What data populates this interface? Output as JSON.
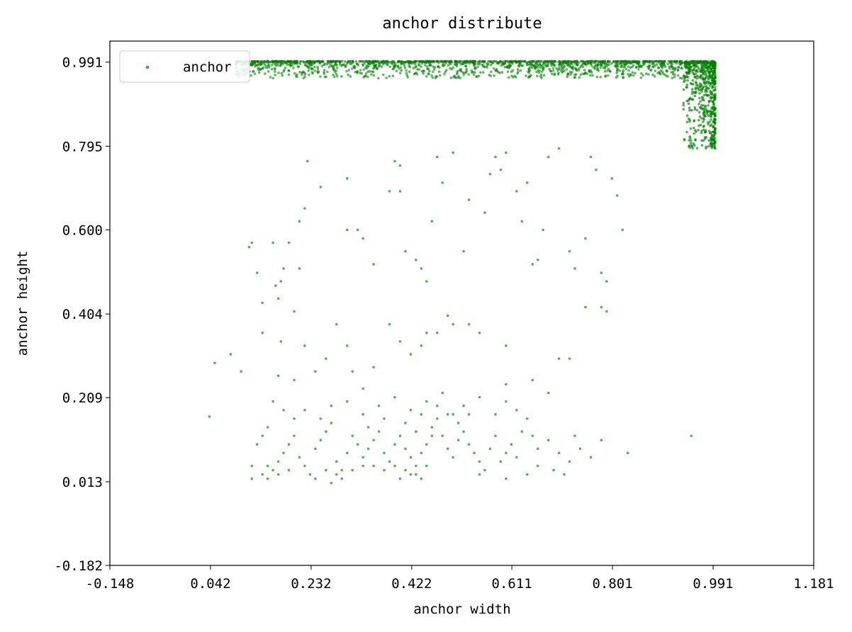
{
  "chart_data": {
    "type": "scatter",
    "title": "anchor distribute",
    "xlabel": "anchor width",
    "ylabel": "anchor height",
    "xlim": [
      -0.148,
      1.181
    ],
    "ylim": [
      -0.182,
      1.04
    ],
    "xticks": [
      "-0.148",
      "0.042",
      "0.232",
      "0.422",
      "0.611",
      "0.801",
      "0.991",
      "1.181"
    ],
    "yticks": [
      "-0.182",
      "0.013",
      "0.209",
      "0.404",
      "0.600",
      "0.795",
      "0.991"
    ],
    "legend": {
      "placement": "upper-left",
      "entries": [
        "anchor"
      ]
    },
    "grid": false,
    "colors": {
      "series": "#008000"
    },
    "series": [
      {
        "name": "anchor",
        "points": [
          [
            0.04,
            0.165
          ],
          [
            0.05,
            0.29
          ],
          [
            0.08,
            0.31
          ],
          [
            0.1,
            0.27
          ],
          [
            0.115,
            0.56
          ],
          [
            0.12,
            0.57
          ],
          [
            0.13,
            0.5
          ],
          [
            0.14,
            0.43
          ],
          [
            0.14,
            0.36
          ],
          [
            0.16,
            0.57
          ],
          [
            0.165,
            0.47
          ],
          [
            0.17,
            0.44
          ],
          [
            0.175,
            0.48
          ],
          [
            0.18,
            0.51
          ],
          [
            0.19,
            0.57
          ],
          [
            0.21,
            0.62
          ],
          [
            0.22,
            0.65
          ],
          [
            0.225,
            0.76
          ],
          [
            0.21,
            0.51
          ],
          [
            0.2,
            0.41
          ],
          [
            0.175,
            0.34
          ],
          [
            0.17,
            0.26
          ],
          [
            0.25,
            0.7
          ],
          [
            0.3,
            0.72
          ],
          [
            0.3,
            0.6
          ],
          [
            0.32,
            0.6
          ],
          [
            0.33,
            0.58
          ],
          [
            0.35,
            0.52
          ],
          [
            0.38,
            0.69
          ],
          [
            0.39,
            0.76
          ],
          [
            0.4,
            0.75
          ],
          [
            0.4,
            0.69
          ],
          [
            0.41,
            0.55
          ],
          [
            0.43,
            0.53
          ],
          [
            0.44,
            0.51
          ],
          [
            0.45,
            0.48
          ],
          [
            0.46,
            0.62
          ],
          [
            0.47,
            0.77
          ],
          [
            0.48,
            0.71
          ],
          [
            0.5,
            0.78
          ],
          [
            0.52,
            0.55
          ],
          [
            0.53,
            0.67
          ],
          [
            0.56,
            0.64
          ],
          [
            0.57,
            0.73
          ],
          [
            0.58,
            0.77
          ],
          [
            0.59,
            0.74
          ],
          [
            0.6,
            0.78
          ],
          [
            0.62,
            0.69
          ],
          [
            0.63,
            0.62
          ],
          [
            0.64,
            0.71
          ],
          [
            0.65,
            0.52
          ],
          [
            0.66,
            0.53
          ],
          [
            0.67,
            0.6
          ],
          [
            0.68,
            0.77
          ],
          [
            0.7,
            0.79
          ],
          [
            0.72,
            0.55
          ],
          [
            0.73,
            0.51
          ],
          [
            0.75,
            0.58
          ],
          [
            0.76,
            0.77
          ],
          [
            0.77,
            0.74
          ],
          [
            0.78,
            0.5
          ],
          [
            0.79,
            0.48
          ],
          [
            0.8,
            0.72
          ],
          [
            0.81,
            0.68
          ],
          [
            0.82,
            0.6
          ],
          [
            0.79,
            0.41
          ],
          [
            0.78,
            0.42
          ],
          [
            0.75,
            0.42
          ],
          [
            0.7,
            0.3
          ],
          [
            0.72,
            0.3
          ],
          [
            0.68,
            0.22
          ],
          [
            0.65,
            0.25
          ],
          [
            0.6,
            0.33
          ],
          [
            0.6,
            0.24
          ],
          [
            0.55,
            0.36
          ],
          [
            0.53,
            0.38
          ],
          [
            0.5,
            0.38
          ],
          [
            0.49,
            0.4
          ],
          [
            0.47,
            0.36
          ],
          [
            0.45,
            0.36
          ],
          [
            0.44,
            0.33
          ],
          [
            0.42,
            0.31
          ],
          [
            0.4,
            0.34
          ],
          [
            0.38,
            0.38
          ],
          [
            0.35,
            0.28
          ],
          [
            0.33,
            0.23
          ],
          [
            0.31,
            0.27
          ],
          [
            0.3,
            0.33
          ],
          [
            0.28,
            0.38
          ],
          [
            0.26,
            0.3
          ],
          [
            0.24,
            0.27
          ],
          [
            0.22,
            0.33
          ],
          [
            0.2,
            0.25
          ],
          [
            0.18,
            0.18
          ],
          [
            0.16,
            0.2
          ],
          [
            0.15,
            0.14
          ],
          [
            0.14,
            0.12
          ],
          [
            0.13,
            0.1
          ],
          [
            0.12,
            0.05
          ],
          [
            0.12,
            0.02
          ],
          [
            0.14,
            0.03
          ],
          [
            0.15,
            0.05
          ],
          [
            0.16,
            0.04
          ],
          [
            0.17,
            0.06
          ],
          [
            0.18,
            0.08
          ],
          [
            0.19,
            0.1
          ],
          [
            0.2,
            0.12
          ],
          [
            0.21,
            0.07
          ],
          [
            0.22,
            0.05
          ],
          [
            0.23,
            0.03
          ],
          [
            0.24,
            0.09
          ],
          [
            0.25,
            0.11
          ],
          [
            0.26,
            0.13
          ],
          [
            0.27,
            0.15
          ],
          [
            0.28,
            0.06
          ],
          [
            0.29,
            0.04
          ],
          [
            0.3,
            0.08
          ],
          [
            0.31,
            0.12
          ],
          [
            0.32,
            0.1
          ],
          [
            0.33,
            0.07
          ],
          [
            0.34,
            0.09
          ],
          [
            0.35,
            0.11
          ],
          [
            0.36,
            0.13
          ],
          [
            0.37,
            0.08
          ],
          [
            0.38,
            0.06
          ],
          [
            0.39,
            0.1
          ],
          [
            0.4,
            0.12
          ],
          [
            0.41,
            0.09
          ],
          [
            0.42,
            0.07
          ],
          [
            0.43,
            0.05
          ],
          [
            0.44,
            0.08
          ],
          [
            0.45,
            0.1
          ],
          [
            0.46,
            0.14
          ],
          [
            0.47,
            0.16
          ],
          [
            0.48,
            0.12
          ],
          [
            0.49,
            0.09
          ],
          [
            0.5,
            0.07
          ],
          [
            0.51,
            0.11
          ],
          [
            0.52,
            0.13
          ],
          [
            0.53,
            0.1
          ],
          [
            0.54,
            0.08
          ],
          [
            0.55,
            0.06
          ],
          [
            0.56,
            0.04
          ],
          [
            0.57,
            0.09
          ],
          [
            0.58,
            0.12
          ],
          [
            0.59,
            0.06
          ],
          [
            0.6,
            0.08
          ],
          [
            0.61,
            0.1
          ],
          [
            0.62,
            0.07
          ],
          [
            0.63,
            0.13
          ],
          [
            0.64,
            0.16
          ],
          [
            0.65,
            0.12
          ],
          [
            0.66,
            0.09
          ],
          [
            0.68,
            0.11
          ],
          [
            0.7,
            0.08
          ],
          [
            0.72,
            0.06
          ],
          [
            0.73,
            0.12
          ],
          [
            0.74,
            0.09
          ],
          [
            0.76,
            0.07
          ],
          [
            0.78,
            0.11
          ],
          [
            0.83,
            0.08
          ],
          [
            0.95,
            0.12
          ],
          [
            0.2,
            0.16
          ],
          [
            0.22,
            0.18
          ],
          [
            0.25,
            0.16
          ],
          [
            0.27,
            0.19
          ],
          [
            0.3,
            0.2
          ],
          [
            0.33,
            0.17
          ],
          [
            0.36,
            0.19
          ],
          [
            0.39,
            0.21
          ],
          [
            0.42,
            0.18
          ],
          [
            0.45,
            0.2
          ],
          [
            0.48,
            0.22
          ],
          [
            0.5,
            0.17
          ],
          [
            0.52,
            0.19
          ],
          [
            0.55,
            0.21
          ],
          [
            0.58,
            0.17
          ],
          [
            0.6,
            0.2
          ],
          [
            0.62,
            0.18
          ],
          [
            0.34,
            0.14
          ],
          [
            0.37,
            0.16
          ],
          [
            0.41,
            0.15
          ],
          [
            0.43,
            0.13
          ],
          [
            0.44,
            0.17
          ],
          [
            0.46,
            0.12
          ],
          [
            0.47,
            0.19
          ],
          [
            0.49,
            0.17
          ],
          [
            0.51,
            0.15
          ],
          [
            0.53,
            0.17
          ],
          [
            0.35,
            0.05
          ],
          [
            0.37,
            0.04
          ],
          [
            0.39,
            0.05
          ],
          [
            0.41,
            0.04
          ],
          [
            0.43,
            0.03
          ],
          [
            0.45,
            0.05
          ],
          [
            0.26,
            0.04
          ],
          [
            0.28,
            0.03
          ],
          [
            0.31,
            0.04
          ],
          [
            0.33,
            0.05
          ],
          [
            0.4,
            0.02
          ],
          [
            0.42,
            0.03
          ],
          [
            0.44,
            0.02
          ],
          [
            0.55,
            0.03
          ],
          [
            0.6,
            0.02
          ],
          [
            0.64,
            0.03
          ],
          [
            0.66,
            0.05
          ],
          [
            0.69,
            0.04
          ],
          [
            0.71,
            0.03
          ],
          [
            0.19,
            0.04
          ],
          [
            0.17,
            0.03
          ],
          [
            0.24,
            0.02
          ],
          [
            0.27,
            0.01
          ],
          [
            0.29,
            0.02
          ],
          [
            0.15,
            0.02
          ]
        ]
      }
    ]
  }
}
